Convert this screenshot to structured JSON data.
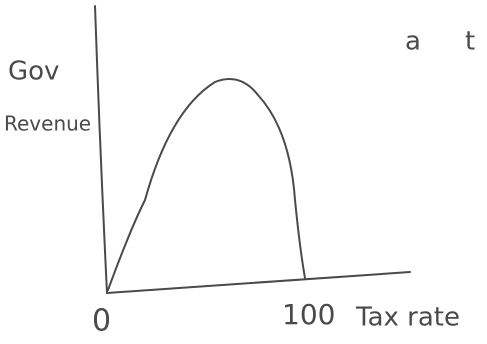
{
  "y_axis_label": [
    "Gov",
    "Revenue"
  ],
  "origin_label": "0",
  "x_end_label": "100",
  "x_axis_label": "Tax rate",
  "corner_text": [
    "a",
    "t"
  ]
}
